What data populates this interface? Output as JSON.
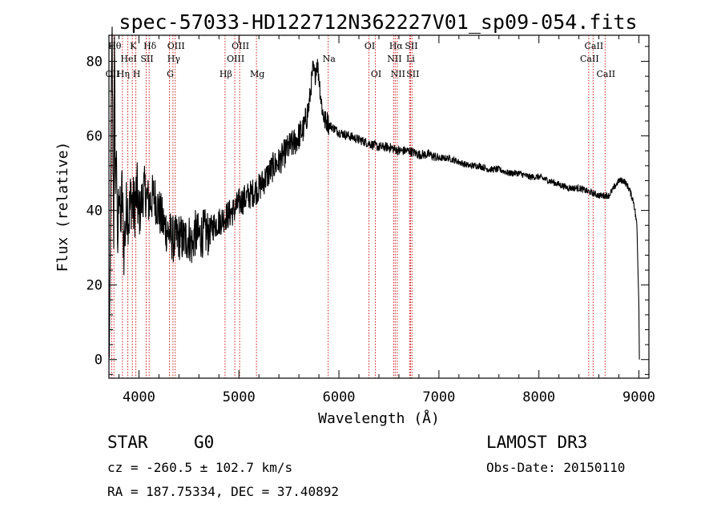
{
  "chart_data": {
    "type": "line",
    "title": "spec-57033-HD122712N362227V01_sp09-054.fits",
    "xlabel": "Wavelength (Å)",
    "ylabel": "Flux (relative)",
    "xlim": [
      3700,
      9100
    ],
    "ylim": [
      -5,
      87
    ],
    "xticks": [
      4000,
      5000,
      6000,
      7000,
      8000,
      9000
    ],
    "yticks": [
      0,
      20,
      40,
      60,
      80
    ],
    "grid": false,
    "series": [
      {
        "anchors": [
          [
            3700,
            0
          ],
          [
            3710,
            12
          ],
          [
            3718,
            45
          ],
          [
            3725,
            72
          ],
          [
            3732,
            85
          ],
          [
            3740,
            55
          ],
          [
            3748,
            35
          ],
          [
            3755,
            80
          ],
          [
            3765,
            45
          ],
          [
            3775,
            60
          ],
          [
            3785,
            25
          ],
          [
            3800,
            50
          ],
          [
            3815,
            35
          ],
          [
            3830,
            45
          ],
          [
            3850,
            30
          ],
          [
            3880,
            42
          ],
          [
            3900,
            38
          ],
          [
            3920,
            44
          ],
          [
            3950,
            40
          ],
          [
            3980,
            45
          ],
          [
            4000,
            38
          ],
          [
            4050,
            46
          ],
          [
            4100,
            42
          ],
          [
            4150,
            44
          ],
          [
            4200,
            40
          ],
          [
            4250,
            36
          ],
          [
            4300,
            34
          ],
          [
            4350,
            32
          ],
          [
            4400,
            33
          ],
          [
            4450,
            32
          ],
          [
            4500,
            33
          ],
          [
            4540,
            30
          ],
          [
            4550,
            34
          ],
          [
            4600,
            33
          ],
          [
            4650,
            34
          ],
          [
            4700,
            34
          ],
          [
            4750,
            36
          ],
          [
            4800,
            37
          ],
          [
            4850,
            38
          ],
          [
            4900,
            39
          ],
          [
            4950,
            40
          ],
          [
            5000,
            42
          ],
          [
            5050,
            43
          ],
          [
            5100,
            44
          ],
          [
            5150,
            45
          ],
          [
            5200,
            46
          ],
          [
            5250,
            48
          ],
          [
            5300,
            50
          ],
          [
            5350,
            52
          ],
          [
            5400,
            53
          ],
          [
            5450,
            55
          ],
          [
            5500,
            57
          ],
          [
            5550,
            58
          ],
          [
            5600,
            60
          ],
          [
            5650,
            62
          ],
          [
            5700,
            68
          ],
          [
            5720,
            73
          ],
          [
            5740,
            78
          ],
          [
            5760,
            76
          ],
          [
            5780,
            80
          ],
          [
            5800,
            76
          ],
          [
            5820,
            70
          ],
          [
            5840,
            66
          ],
          [
            5860,
            64
          ],
          [
            5880,
            64
          ],
          [
            5900,
            63
          ],
          [
            5950,
            62
          ],
          [
            6000,
            61
          ],
          [
            6100,
            60
          ],
          [
            6200,
            59
          ],
          [
            6300,
            58
          ],
          [
            6400,
            57
          ],
          [
            6500,
            57
          ],
          [
            6600,
            56
          ],
          [
            6700,
            56
          ],
          [
            6800,
            55
          ],
          [
            6900,
            55
          ],
          [
            7000,
            54
          ],
          [
            7100,
            54
          ],
          [
            7200,
            53
          ],
          [
            7300,
            52
          ],
          [
            7400,
            52
          ],
          [
            7500,
            51
          ],
          [
            7600,
            51
          ],
          [
            7700,
            50
          ],
          [
            7800,
            50
          ],
          [
            7900,
            49
          ],
          [
            8000,
            49
          ],
          [
            8100,
            48
          ],
          [
            8200,
            47
          ],
          [
            8300,
            46
          ],
          [
            8400,
            46
          ],
          [
            8500,
            45
          ],
          [
            8600,
            44
          ],
          [
            8700,
            44
          ],
          [
            8750,
            46
          ],
          [
            8800,
            48
          ],
          [
            8850,
            48
          ],
          [
            8900,
            46
          ],
          [
            8950,
            42
          ],
          [
            8980,
            36
          ],
          [
            9000,
            14
          ],
          [
            9005,
            0
          ]
        ]
      }
    ],
    "line_labels": [
      {
        "name": "OII",
        "wave": 3727,
        "row": 3
      },
      {
        "name": "Hθ",
        "wave": 3750,
        "row": 1
      },
      {
        "name": "Hη",
        "wave": 3835,
        "row": 3
      },
      {
        "name": "HeI",
        "wave": 3889,
        "row": 2
      },
      {
        "name": "K",
        "wave": 3934,
        "row": 1
      },
      {
        "name": "H",
        "wave": 3969,
        "row": 3
      },
      {
        "name": "SII",
        "wave": 4072,
        "row": 2
      },
      {
        "name": "Hδ",
        "wave": 4102,
        "row": 1
      },
      {
        "name": "G",
        "wave": 4305,
        "row": 3
      },
      {
        "name": "Hγ",
        "wave": 4340,
        "row": 2
      },
      {
        "name": "OIII",
        "wave": 4363,
        "row": 1
      },
      {
        "name": "Hβ",
        "wave": 4861,
        "row": 3
      },
      {
        "name": "OIII",
        "wave": 4959,
        "row": 2
      },
      {
        "name": "OIII",
        "wave": 5007,
        "row": 1
      },
      {
        "name": "Mg",
        "wave": 5175,
        "row": 3
      },
      {
        "name": "Na",
        "wave": 5893,
        "row": 2
      },
      {
        "name": "OI",
        "wave": 6300,
        "row": 1
      },
      {
        "name": "OI",
        "wave": 6364,
        "row": 3
      },
      {
        "name": "NII",
        "wave": 6548,
        "row": 2
      },
      {
        "name": "Hα",
        "wave": 6563,
        "row": 1
      },
      {
        "name": "NII",
        "wave": 6583,
        "row": 3
      },
      {
        "name": "Li",
        "wave": 6708,
        "row": 2
      },
      {
        "name": "SII",
        "wave": 6716,
        "row": 1
      },
      {
        "name": "SII",
        "wave": 6731,
        "row": 3
      },
      {
        "name": "CaII",
        "wave": 8498,
        "row": 2
      },
      {
        "name": "CaII",
        "wave": 8542,
        "row": 1
      },
      {
        "name": "CaII",
        "wave": 8662,
        "row": 3
      }
    ],
    "line_color": "#000000",
    "marker_color": "#cc0000"
  },
  "info": {
    "object_class": "STAR",
    "subclass": "G0",
    "survey": "LAMOST DR3",
    "redshift": "cz = -260.5 ± 102.7 km/s",
    "obs_date": "Obs-Date: 20150110",
    "coords": "RA = 187.75334, DEC =  37.40892"
  }
}
